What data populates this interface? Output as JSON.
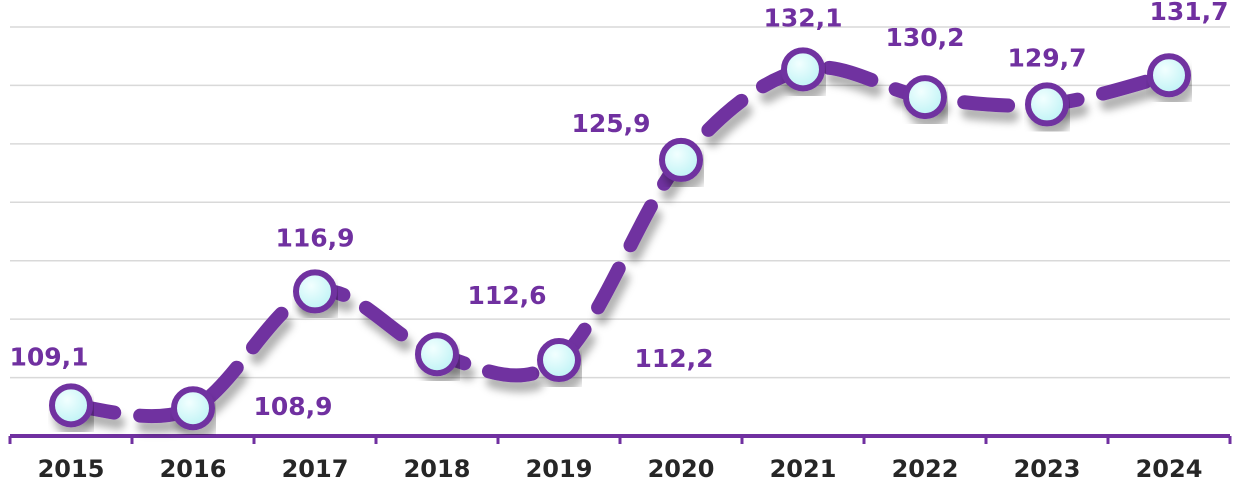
{
  "chart_data": {
    "type": "line",
    "categories": [
      "2015",
      "2016",
      "2017",
      "2018",
      "2019",
      "2020",
      "2021",
      "2022",
      "2023",
      "2024"
    ],
    "series": [
      {
        "color": "#7030a0",
        "values": [
          109.1,
          108.9,
          116.9,
          112.6,
          112.2,
          125.9,
          132.1,
          130.2,
          129.7,
          131.7
        ],
        "value_labels": [
          "109,1",
          "108,9",
          "116,9",
          "112,6",
          "112,2",
          "125,9",
          "132,1",
          "130,2",
          "129,7",
          "131,7"
        ]
      }
    ],
    "ylim": [
      107,
      135
    ],
    "yticks": [
      107,
      111,
      115,
      119,
      123,
      127,
      131,
      135
    ],
    "grid": true
  }
}
